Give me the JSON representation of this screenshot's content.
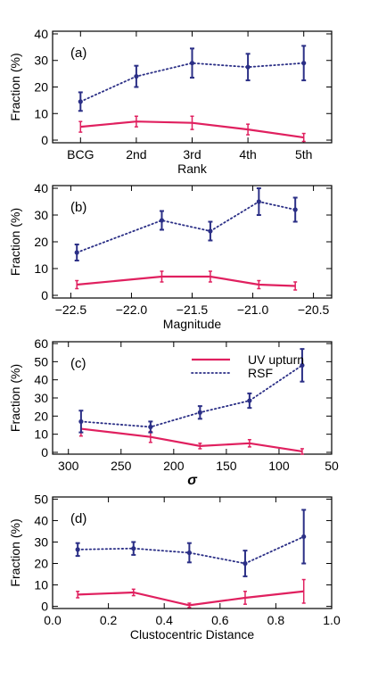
{
  "colors": {
    "uv_upturn": "#e0205f",
    "rsf": "#2b2f86",
    "axis": "#000000"
  },
  "chart_data": [
    {
      "type": "line",
      "panel_label": "(a)",
      "xlabel": "Rank",
      "ylabel": "Fraction (%)",
      "categories": [
        "BCG",
        "2nd",
        "3rd",
        "4th",
        "5th"
      ],
      "x": [
        1,
        2,
        3,
        4,
        5
      ],
      "xlim": [
        0.5,
        5.5
      ],
      "xticks": [
        1,
        2,
        3,
        4,
        5
      ],
      "xtick_labels": [
        "BCG",
        "2nd",
        "3rd",
        "4th",
        "5th"
      ],
      "ylim": [
        -1,
        41
      ],
      "yticks": [
        0,
        10,
        20,
        30,
        40
      ],
      "ytick_labels": [
        "0",
        "10",
        "20",
        "30",
        "40"
      ],
      "series": [
        {
          "key": "uv",
          "values": [
            5,
            7,
            6.5,
            4,
            1
          ],
          "errors": [
            2,
            2,
            2.5,
            2,
            1.5
          ]
        },
        {
          "key": "rsf",
          "values": [
            14.5,
            24,
            29,
            27.5,
            29
          ],
          "errors": [
            3.5,
            4,
            5.5,
            5,
            6.5
          ]
        }
      ]
    },
    {
      "type": "line",
      "panel_label": "(b)",
      "xlabel": "Magnitude",
      "ylabel": "Fraction (%)",
      "x": [
        -22.45,
        -21.75,
        -21.35,
        -20.95,
        -20.65
      ],
      "xlim": [
        -22.65,
        -20.35
      ],
      "xticks": [
        -22.5,
        -22.0,
        -21.5,
        -21.0,
        -20.5
      ],
      "xtick_labels": [
        "−22.5",
        "−22.0",
        "−21.5",
        "−21.0",
        "−20.5"
      ],
      "ylim": [
        -1,
        41
      ],
      "yticks": [
        0,
        10,
        20,
        30,
        40
      ],
      "ytick_labels": [
        "0",
        "10",
        "20",
        "30",
        "40"
      ],
      "series": [
        {
          "key": "uv",
          "values": [
            4,
            7,
            7,
            4,
            3.5
          ],
          "errors": [
            1.5,
            2,
            2,
            1.5,
            1.5
          ]
        },
        {
          "key": "rsf",
          "values": [
            16,
            28,
            24,
            35,
            32
          ],
          "errors": [
            3,
            3.5,
            3.5,
            5,
            4.5
          ]
        }
      ]
    },
    {
      "type": "line",
      "panel_label": "(c)",
      "xlabel": "σ",
      "ylabel": "Fraction (%)",
      "x": [
        288,
        222,
        175,
        128,
        78
      ],
      "xlim": [
        315,
        50
      ],
      "xticks": [
        300,
        250,
        200,
        150,
        100,
        50
      ],
      "xtick_labels": [
        "300",
        "250",
        "200",
        "150",
        "100",
        "50"
      ],
      "ylim": [
        -1,
        61
      ],
      "yticks": [
        0,
        10,
        20,
        30,
        40,
        50,
        60
      ],
      "ytick_labels": [
        "0",
        "10",
        "20",
        "30",
        "40",
        "50",
        "60"
      ],
      "legend": {
        "placement": "top-center",
        "entries": [
          {
            "key": "uv",
            "label": "UV upturn"
          },
          {
            "key": "rsf",
            "label": "RSF"
          }
        ]
      },
      "series": [
        {
          "key": "uv",
          "name": "UV upturn",
          "values": [
            13,
            8.5,
            3.5,
            5,
            0.5
          ],
          "errors": [
            4,
            3,
            1.5,
            2,
            1.5
          ]
        },
        {
          "key": "rsf",
          "name": "RSF",
          "values": [
            17,
            14,
            22,
            28.5,
            48
          ],
          "errors": [
            6,
            3,
            3.5,
            4,
            9
          ]
        }
      ]
    },
    {
      "type": "line",
      "panel_label": "(d)",
      "xlabel": "Clustocentric Distance",
      "ylabel": "Fraction (%)",
      "x": [
        0.09,
        0.29,
        0.49,
        0.69,
        0.9
      ],
      "xlim": [
        0.0,
        1.0
      ],
      "xticks": [
        0.0,
        0.2,
        0.4,
        0.6,
        0.8,
        1.0
      ],
      "xtick_labels": [
        "0.0",
        "0.2",
        "0.4",
        "0.6",
        "0.8",
        "1.0"
      ],
      "ylim": [
        -1,
        51
      ],
      "yticks": [
        0,
        10,
        20,
        30,
        40,
        50
      ],
      "ytick_labels": [
        "0",
        "10",
        "20",
        "30",
        "40",
        "50"
      ],
      "series": [
        {
          "key": "uv",
          "values": [
            5.5,
            6.5,
            0.5,
            4,
            7
          ],
          "errors": [
            1.5,
            1.5,
            1,
            3,
            5.5
          ]
        },
        {
          "key": "rsf",
          "values": [
            26.5,
            27,
            25,
            20,
            32.5
          ],
          "errors": [
            3,
            3,
            4.5,
            6,
            12.5
          ]
        }
      ]
    }
  ]
}
